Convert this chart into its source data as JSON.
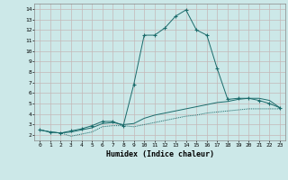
{
  "xlabel": "Humidex (Indice chaleur)",
  "bg_color": "#cce8e8",
  "grid_color": "#c4b8b8",
  "line_color": "#1a6b6b",
  "xlim": [
    -0.5,
    23.5
  ],
  "ylim": [
    1.5,
    14.5
  ],
  "xticks": [
    0,
    1,
    2,
    3,
    4,
    5,
    6,
    7,
    8,
    9,
    10,
    11,
    12,
    13,
    14,
    15,
    16,
    17,
    18,
    19,
    20,
    21,
    22,
    23
  ],
  "yticks": [
    2,
    3,
    4,
    5,
    6,
    7,
    8,
    9,
    10,
    11,
    12,
    13,
    14
  ],
  "series": [
    {
      "x": [
        0,
        1,
        2,
        3,
        4,
        5,
        6,
        7,
        8,
        9,
        10,
        11,
        12,
        13,
        14,
        15,
        16,
        17,
        18,
        19,
        20,
        21,
        22,
        23
      ],
      "y": [
        2.5,
        2.3,
        2.2,
        1.9,
        2.1,
        2.3,
        2.8,
        2.9,
        2.9,
        2.8,
        3.0,
        3.2,
        3.4,
        3.6,
        3.8,
        3.9,
        4.1,
        4.2,
        4.3,
        4.4,
        4.5,
        4.5,
        4.5,
        4.5
      ],
      "marker": null,
      "dotted": true
    },
    {
      "x": [
        0,
        1,
        2,
        3,
        4,
        5,
        6,
        7,
        8,
        9,
        10,
        11,
        12,
        13,
        14,
        15,
        16,
        17,
        18,
        19,
        20,
        21,
        22,
        23
      ],
      "y": [
        2.5,
        2.3,
        2.2,
        2.4,
        2.6,
        2.9,
        3.3,
        3.3,
        2.9,
        6.8,
        11.5,
        11.5,
        12.2,
        13.3,
        13.9,
        12.0,
        11.5,
        8.3,
        5.4,
        5.5,
        5.5,
        5.3,
        5.0,
        4.6
      ],
      "marker": "+",
      "dotted": false
    },
    {
      "x": [
        0,
        1,
        2,
        3,
        4,
        5,
        6,
        7,
        8,
        9,
        10,
        11,
        12,
        13,
        14,
        15,
        16,
        17,
        18,
        19,
        20,
        21,
        22,
        23
      ],
      "y": [
        2.5,
        2.3,
        2.2,
        2.3,
        2.5,
        2.7,
        3.1,
        3.2,
        3.0,
        3.1,
        3.6,
        3.9,
        4.1,
        4.3,
        4.5,
        4.7,
        4.9,
        5.1,
        5.2,
        5.4,
        5.5,
        5.5,
        5.3,
        4.6
      ],
      "marker": null,
      "dotted": false
    }
  ]
}
